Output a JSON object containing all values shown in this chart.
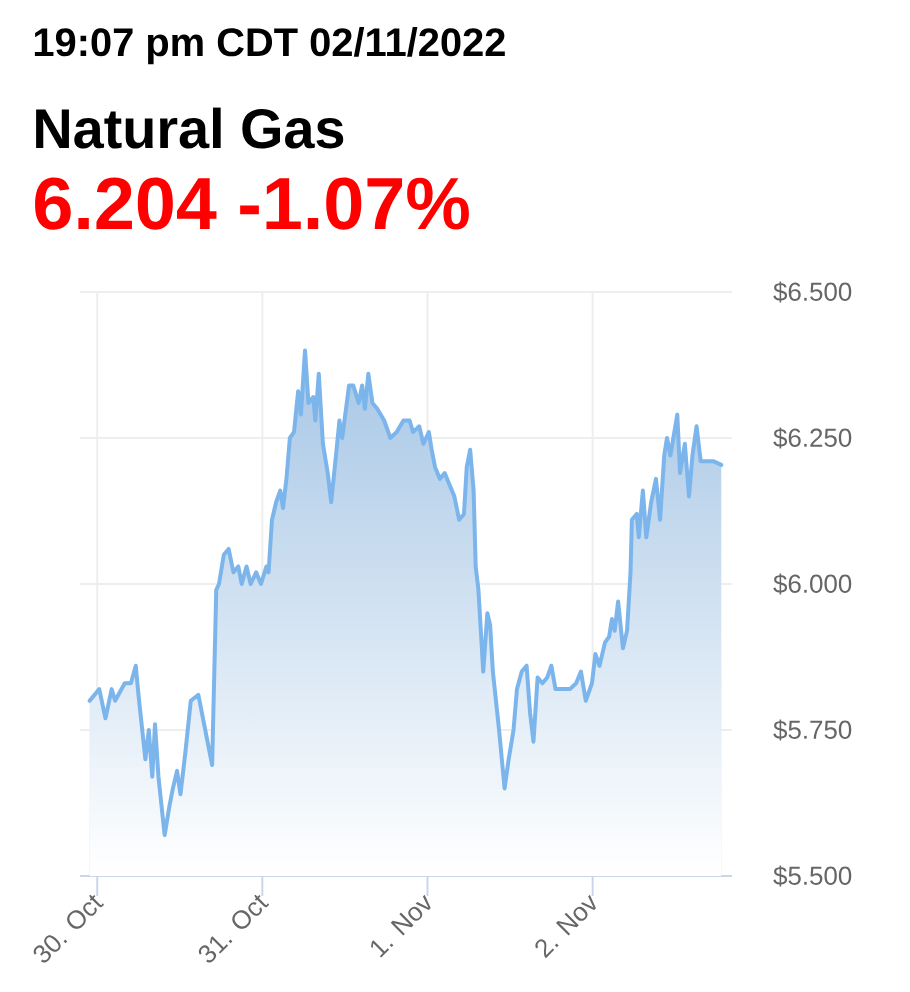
{
  "chart_data": {
    "type": "area",
    "title": "Natural Gas",
    "subtitle": "6.204 -1.07%",
    "annotations": [
      "19:07 pm CDT 02/11/2022"
    ],
    "color": "#7cb5ec",
    "x": [
      "2022-10-29T22:54",
      "2022-10-30T00:18",
      "2022-10-30T01:12",
      "2022-10-30T02:06",
      "2022-10-30T02:36",
      "2022-10-30T04:00",
      "2022-10-30T04:54",
      "2022-10-30T05:36",
      "2022-10-30T06:00",
      "2022-10-30T07:00",
      "2022-10-30T07:30",
      "2022-10-30T08:00",
      "2022-10-30T08:24",
      "2022-10-30T08:54",
      "2022-10-30T09:48",
      "2022-10-30T10:30",
      "2022-10-30T11:00",
      "2022-10-30T11:36",
      "2022-10-30T12:06",
      "2022-10-30T12:48",
      "2022-10-30T13:36",
      "2022-10-30T14:42",
      "2022-10-30T15:12",
      "2022-10-30T16:42",
      "2022-10-30T17:18",
      "2022-10-30T17:42",
      "2022-10-30T18:24",
      "2022-10-30T19:06",
      "2022-10-30T19:48",
      "2022-10-30T20:30",
      "2022-10-30T21:00",
      "2022-10-30T21:42",
      "2022-10-30T22:18",
      "2022-10-30T23:06",
      "2022-10-30T23:48",
      "2022-10-31T00:36",
      "2022-10-31T00:54",
      "2022-10-31T01:24",
      "2022-10-31T02:00",
      "2022-10-31T02:36",
      "2022-10-31T03:00",
      "2022-10-31T03:30",
      "2022-10-31T04:00",
      "2022-10-31T04:36",
      "2022-10-31T05:12",
      "2022-10-31T05:36",
      "2022-10-31T06:12",
      "2022-10-31T06:42",
      "2022-10-31T07:24",
      "2022-10-31T07:42",
      "2022-10-31T08:12",
      "2022-10-31T08:48",
      "2022-10-31T09:30",
      "2022-10-31T10:00",
      "2022-10-31T10:42",
      "2022-10-31T11:12",
      "2022-10-31T11:36",
      "2022-10-31T12:36",
      "2022-10-31T13:12",
      "2022-10-31T14:00",
      "2022-10-31T14:30",
      "2022-10-31T14:54",
      "2022-10-31T15:24",
      "2022-10-31T16:00",
      "2022-10-31T16:42",
      "2022-10-31T17:42",
      "2022-10-31T18:36",
      "2022-10-31T19:30",
      "2022-10-31T20:30",
      "2022-10-31T21:24",
      "2022-10-31T21:54",
      "2022-10-31T22:48",
      "2022-10-31T23:24",
      "2022-11-01T00:12",
      "2022-11-01T00:36",
      "2022-11-01T01:06",
      "2022-11-01T01:48",
      "2022-11-01T02:30",
      "2022-11-01T03:12",
      "2022-11-01T03:54",
      "2022-11-01T04:36",
      "2022-11-01T05:18",
      "2022-11-01T05:42",
      "2022-11-01T06:12",
      "2022-11-01T06:42",
      "2022-11-01T07:00",
      "2022-11-01T07:24",
      "2022-11-01T08:06",
      "2022-11-01T08:42",
      "2022-11-01T09:06",
      "2022-11-01T09:30",
      "2022-11-01T10:24",
      "2022-11-01T11:12",
      "2022-11-01T11:48",
      "2022-11-01T12:30",
      "2022-11-01T13:00",
      "2022-11-01T13:42",
      "2022-11-01T14:24",
      "2022-11-01T14:54",
      "2022-11-01T15:24",
      "2022-11-01T16:00",
      "2022-11-01T16:42",
      "2022-11-01T17:24",
      "2022-11-01T18:00",
      "2022-11-01T18:36",
      "2022-11-01T19:30",
      "2022-11-01T20:42",
      "2022-11-01T21:36",
      "2022-11-01T22:18",
      "2022-11-01T23:00",
      "2022-11-01T23:54",
      "2022-11-02T00:24",
      "2022-11-02T01:00",
      "2022-11-02T01:48",
      "2022-11-02T02:24",
      "2022-11-02T02:48",
      "2022-11-02T03:12",
      "2022-11-02T03:42",
      "2022-11-02T04:24",
      "2022-11-02T05:00",
      "2022-11-02T05:30",
      "2022-11-02T05:42",
      "2022-11-02T06:24",
      "2022-11-02T06:42",
      "2022-11-02T07:18",
      "2022-11-02T07:48",
      "2022-11-02T08:30",
      "2022-11-02T09:12",
      "2022-11-02T09:48",
      "2022-11-02T10:24",
      "2022-11-02T10:48",
      "2022-11-02T11:18",
      "2022-11-02T12:18",
      "2022-11-02T12:42",
      "2022-11-02T13:24",
      "2022-11-02T14:00",
      "2022-11-02T14:30",
      "2022-11-02T15:06",
      "2022-11-02T15:42",
      "2022-11-02T16:42",
      "2022-11-02T17:36",
      "2022-11-02T18:42"
    ],
    "values": [
      5.8,
      5.82,
      5.77,
      5.82,
      5.8,
      5.83,
      5.83,
      5.86,
      5.81,
      5.7,
      5.75,
      5.67,
      5.76,
      5.67,
      5.57,
      5.62,
      5.65,
      5.68,
      5.64,
      5.71,
      5.8,
      5.81,
      5.78,
      5.69,
      5.99,
      6.0,
      6.05,
      6.06,
      6.02,
      6.03,
      6.0,
      6.03,
      6.0,
      6.02,
      6.0,
      6.03,
      6.02,
      6.11,
      6.14,
      6.16,
      6.13,
      6.18,
      6.25,
      6.26,
      6.33,
      6.29,
      6.4,
      6.31,
      6.32,
      6.28,
      6.36,
      6.24,
      6.19,
      6.14,
      6.22,
      6.28,
      6.25,
      6.34,
      6.34,
      6.31,
      6.34,
      6.3,
      6.36,
      6.31,
      6.3,
      6.28,
      6.25,
      6.26,
      6.28,
      6.28,
      6.26,
      6.27,
      6.24,
      6.26,
      6.23,
      6.2,
      6.18,
      6.19,
      6.17,
      6.15,
      6.11,
      6.12,
      6.2,
      6.23,
      6.16,
      6.03,
      5.99,
      5.85,
      5.95,
      5.93,
      5.85,
      5.75,
      5.65,
      5.7,
      5.75,
      5.82,
      5.85,
      5.86,
      5.78,
      5.73,
      5.84,
      5.83,
      5.84,
      5.86,
      5.82,
      5.82,
      5.82,
      5.83,
      5.85,
      5.8,
      5.83,
      5.88,
      5.86,
      5.9,
      5.91,
      5.94,
      5.92,
      5.97,
      5.89,
      5.92,
      6.02,
      6.11,
      6.12,
      6.08,
      6.16,
      6.08,
      6.14,
      6.18,
      6.11,
      6.22,
      6.25,
      6.22,
      6.29,
      6.19,
      6.24,
      6.15,
      6.22,
      6.27,
      6.21,
      6.21,
      6.21,
      6.204
    ],
    "xlim": [
      "2022-10-29T21:30",
      "2022-11-02T20:15"
    ],
    "xticks": [
      {
        "value": "2022-10-30",
        "label": "30. Oct"
      },
      {
        "value": "2022-10-31",
        "label": "31. Oct"
      },
      {
        "value": "2022-11-01",
        "label": "1. Nov"
      },
      {
        "value": "2022-11-02",
        "label": "2. Nov"
      }
    ],
    "ylim": [
      5.5,
      6.5
    ],
    "yticks": [
      {
        "value": 5.5,
        "label": "$5.500"
      },
      {
        "value": 5.75,
        "label": "$5.750"
      },
      {
        "value": 6.0,
        "label": "$6.000"
      },
      {
        "value": 6.25,
        "label": "$6.250"
      },
      {
        "value": 6.5,
        "label": "$6.500"
      }
    ],
    "grid": true
  }
}
